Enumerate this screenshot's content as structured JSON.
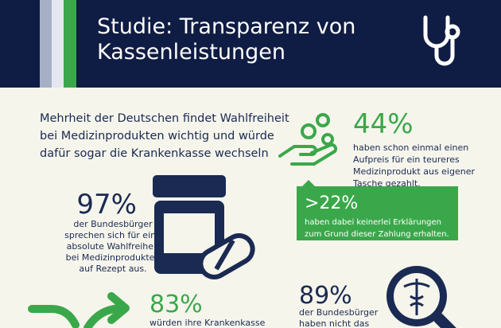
{
  "header": {
    "title_lines": [
      "Studie: Transparenz von",
      "Kassenleistungen"
    ]
  },
  "intro": {
    "lines": [
      "Mehrheit der Deutschen findet Wahlfreiheit",
      "bei Medizinprodukten wichtig und würde",
      "dafür sogar die Krankenkasse wechseln"
    ]
  },
  "stats": [
    {
      "value": "44%",
      "lines": [
        "haben schon einmal einen",
        "Aufpreis für ein teureres",
        "Medizinprodukt aus eigener",
        "Tasche gezahlt."
      ]
    },
    {
      "value": ">22%",
      "lines": [
        "haben dabei keinerlei Erklärungen",
        "zum Grund dieser Zahlung erhalten."
      ]
    },
    {
      "value": "97%",
      "lines": [
        "der Bundesbürger",
        "sprechen sich für eine",
        "absolute Wahlfreiheit",
        "bei Medizinprodukten",
        "auf Rezept aus."
      ]
    },
    {
      "value": "83%",
      "lines": [
        "würden ihre Krankenkasse"
      ]
    },
    {
      "value": "89%",
      "lines": [
        "der Bundesbürger",
        "haben nicht das"
      ]
    }
  ]
}
